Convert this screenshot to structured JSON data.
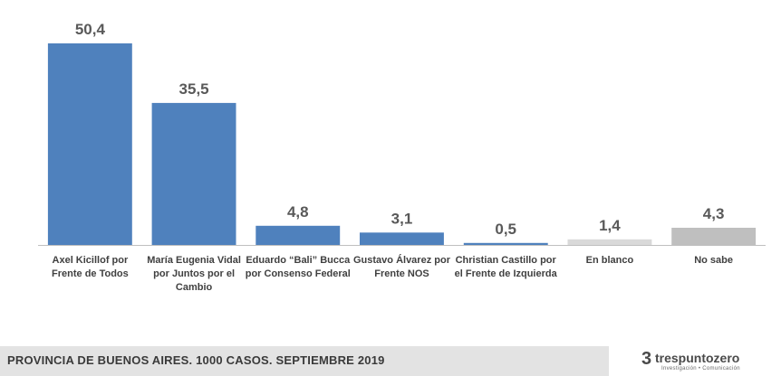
{
  "chart_data": {
    "type": "bar",
    "categories": [
      [
        "Axel Kicillof por",
        "Frente de Todos"
      ],
      [
        "María Eugenia Vidal",
        "por Juntos por el",
        "Cambio"
      ],
      [
        "Eduardo “Bali” Bucca",
        "por Consenso Federal"
      ],
      [
        "Gustavo Álvarez por",
        "Frente NOS"
      ],
      [
        "Christian Castillo por",
        "el Frente de Izquierda"
      ],
      [
        "En blanco"
      ],
      [
        "No sabe"
      ]
    ],
    "values": [
      50.4,
      35.5,
      4.8,
      3.1,
      0.5,
      1.4,
      4.3
    ],
    "value_labels": [
      "50,4",
      "35,5",
      "4,8",
      "3,1",
      "0,5",
      "1,4",
      "4,3"
    ],
    "bar_colors": [
      "#4f81bd",
      "#4f81bd",
      "#4f81bd",
      "#4f81bd",
      "#4f81bd",
      "#d9d9d9",
      "#bfbfbf"
    ],
    "title": "",
    "xlabel": "",
    "ylabel": "",
    "ylim": [
      0,
      50.4
    ],
    "grid": false,
    "legend": "none"
  },
  "footer": {
    "caption": "PROVINCIA DE BUENOS AIRES. 1000 CASOS. SEPTIEMBRE 2019"
  },
  "logo": {
    "mark": "3",
    "name": "trespuntozero",
    "tagline": "Investigación • Comunicación"
  },
  "colors": {
    "bar_primary": "#4f81bd",
    "bar_blank": "#d9d9d9",
    "bar_unknown": "#bfbfbf",
    "footer_band": "#e3e3e3"
  }
}
